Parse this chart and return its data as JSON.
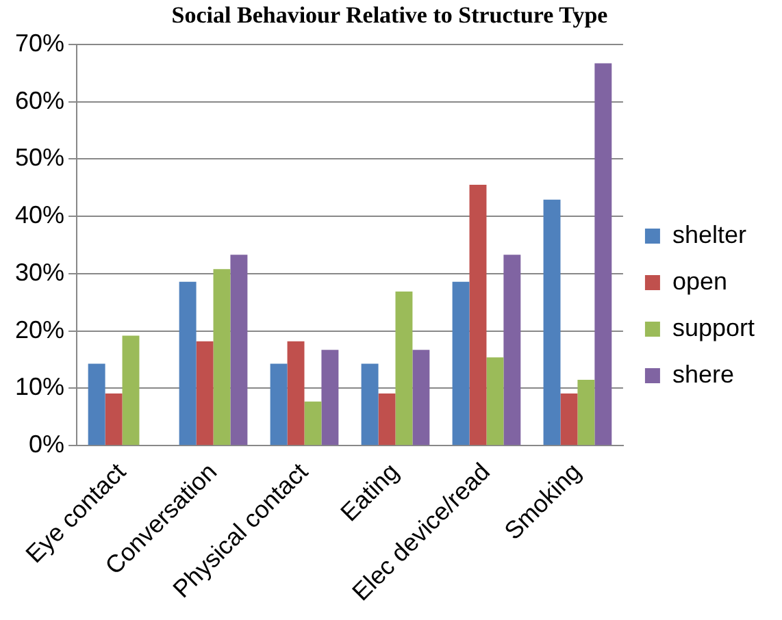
{
  "chart_data": {
    "type": "bar",
    "title": "Social Behaviour Relative to Structure Type",
    "categories": [
      "Eye contact",
      "Conversation",
      "Physical contact",
      "Eating",
      "Elec device/read",
      "Smoking"
    ],
    "series": [
      {
        "name": "shelter",
        "color": "#4f81bd",
        "values": [
          14.3,
          28.6,
          14.3,
          14.3,
          28.6,
          42.9
        ]
      },
      {
        "name": "open",
        "color": "#c0504d",
        "values": [
          9.1,
          18.2,
          18.2,
          9.1,
          45.5,
          9.1
        ]
      },
      {
        "name": "support",
        "color": "#9bbb59",
        "values": [
          19.2,
          30.8,
          7.7,
          26.9,
          15.4,
          11.5
        ]
      },
      {
        "name": "shere",
        "color": "#8064a2",
        "values": [
          0,
          33.3,
          16.7,
          16.7,
          33.3,
          66.7
        ]
      }
    ],
    "ylim": [
      0,
      70
    ],
    "yticks": [
      {
        "value": 0,
        "label": "0%"
      },
      {
        "value": 10,
        "label": "10%"
      },
      {
        "value": 20,
        "label": "20%"
      },
      {
        "value": 30,
        "label": "30%"
      },
      {
        "value": 40,
        "label": "40%"
      },
      {
        "value": 50,
        "label": "50%"
      },
      {
        "value": 60,
        "label": "60%"
      },
      {
        "value": 70,
        "label": "70%"
      }
    ],
    "grid": "y",
    "legend": "right"
  }
}
